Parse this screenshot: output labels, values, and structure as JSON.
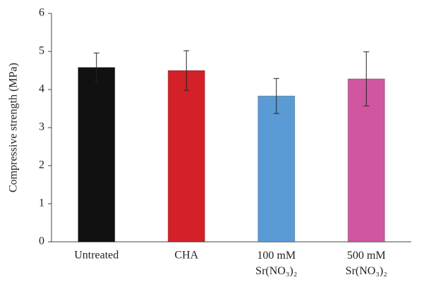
{
  "chart_data": {
    "type": "bar",
    "y_label": "Compressive strength (MPa)",
    "categories": [
      "Untreated",
      "CHA",
      "100 mM Sr(NO₃)₂",
      "500 mM Sr(NO₃)₂"
    ],
    "values": [
      4.58,
      4.5,
      3.83,
      4.28
    ],
    "errors": [
      0.38,
      0.52,
      0.46,
      0.71
    ],
    "colors": [
      "#111111",
      "#d42028",
      "#5b9bd5",
      "#d056a0"
    ],
    "ylim": [
      0,
      6
    ],
    "yticks": [
      0,
      1,
      2,
      3,
      4,
      5,
      6
    ]
  }
}
